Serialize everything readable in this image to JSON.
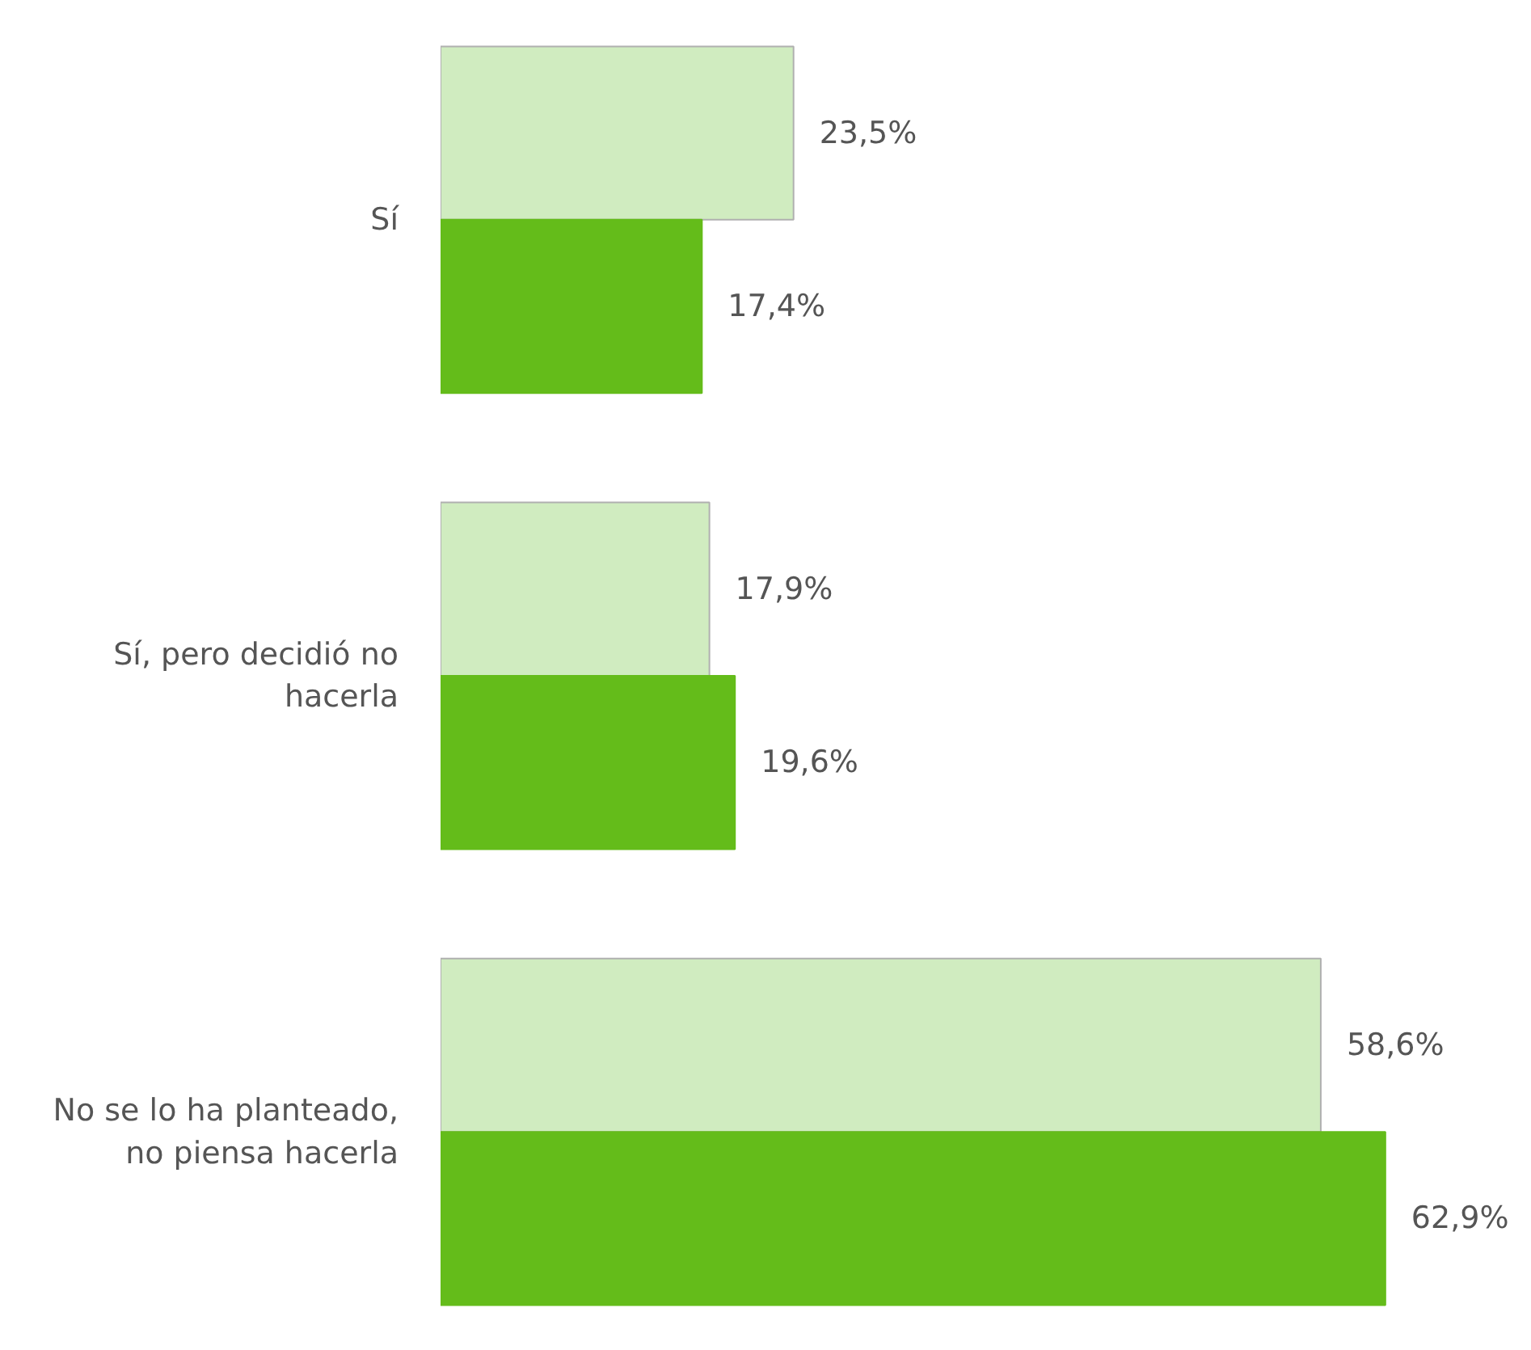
{
  "chart_data": {
    "type": "bar",
    "orientation": "horizontal",
    "categories": [
      "Sí",
      "Sí, pero decidió no hacerla",
      "No se lo ha planteado, no piensa hacerla"
    ],
    "series": [
      {
        "color": "#d0ecc0",
        "values": [
          23.5,
          17.9,
          58.6
        ],
        "value_labels": [
          "23,5%",
          "17,9%",
          "58,6%"
        ]
      },
      {
        "color": "#64bc1a",
        "values": [
          17.4,
          19.6,
          62.9
        ],
        "value_labels": [
          "17,4%",
          "19,6%",
          "62,9%"
        ]
      }
    ],
    "tick_labels": "y"
  }
}
